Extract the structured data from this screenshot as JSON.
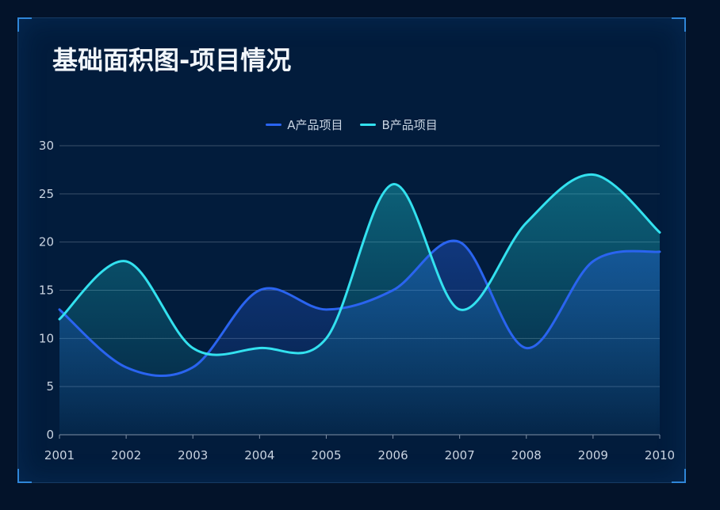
{
  "chart_data": {
    "type": "area",
    "title": "基础面积图-项目情况",
    "categories": [
      "2001",
      "2002",
      "2003",
      "2004",
      "2005",
      "2006",
      "2007",
      "2008",
      "2009",
      "2010"
    ],
    "series": [
      {
        "name": "A产品项目",
        "values": [
          13,
          7,
          7,
          15,
          13,
          15,
          20,
          9,
          18,
          19
        ],
        "color": "#2a64f0",
        "area_color": "#2864e6"
      },
      {
        "name": "B产品项目",
        "values": [
          12,
          18,
          9,
          9,
          10,
          26,
          13,
          22,
          27,
          21
        ],
        "color": "#33e1ef",
        "area_color": "#1cc8d2"
      }
    ],
    "ylim": [
      0,
      30
    ],
    "yticks": [
      0,
      5,
      10,
      15,
      20,
      25,
      30
    ],
    "smooth": true,
    "grid": true,
    "legend": "top-center"
  },
  "theme": {
    "background": "#03132a",
    "panel": "#021c3c",
    "grid_color": "#3a4f6a",
    "text_color": "#c9d3e0"
  }
}
